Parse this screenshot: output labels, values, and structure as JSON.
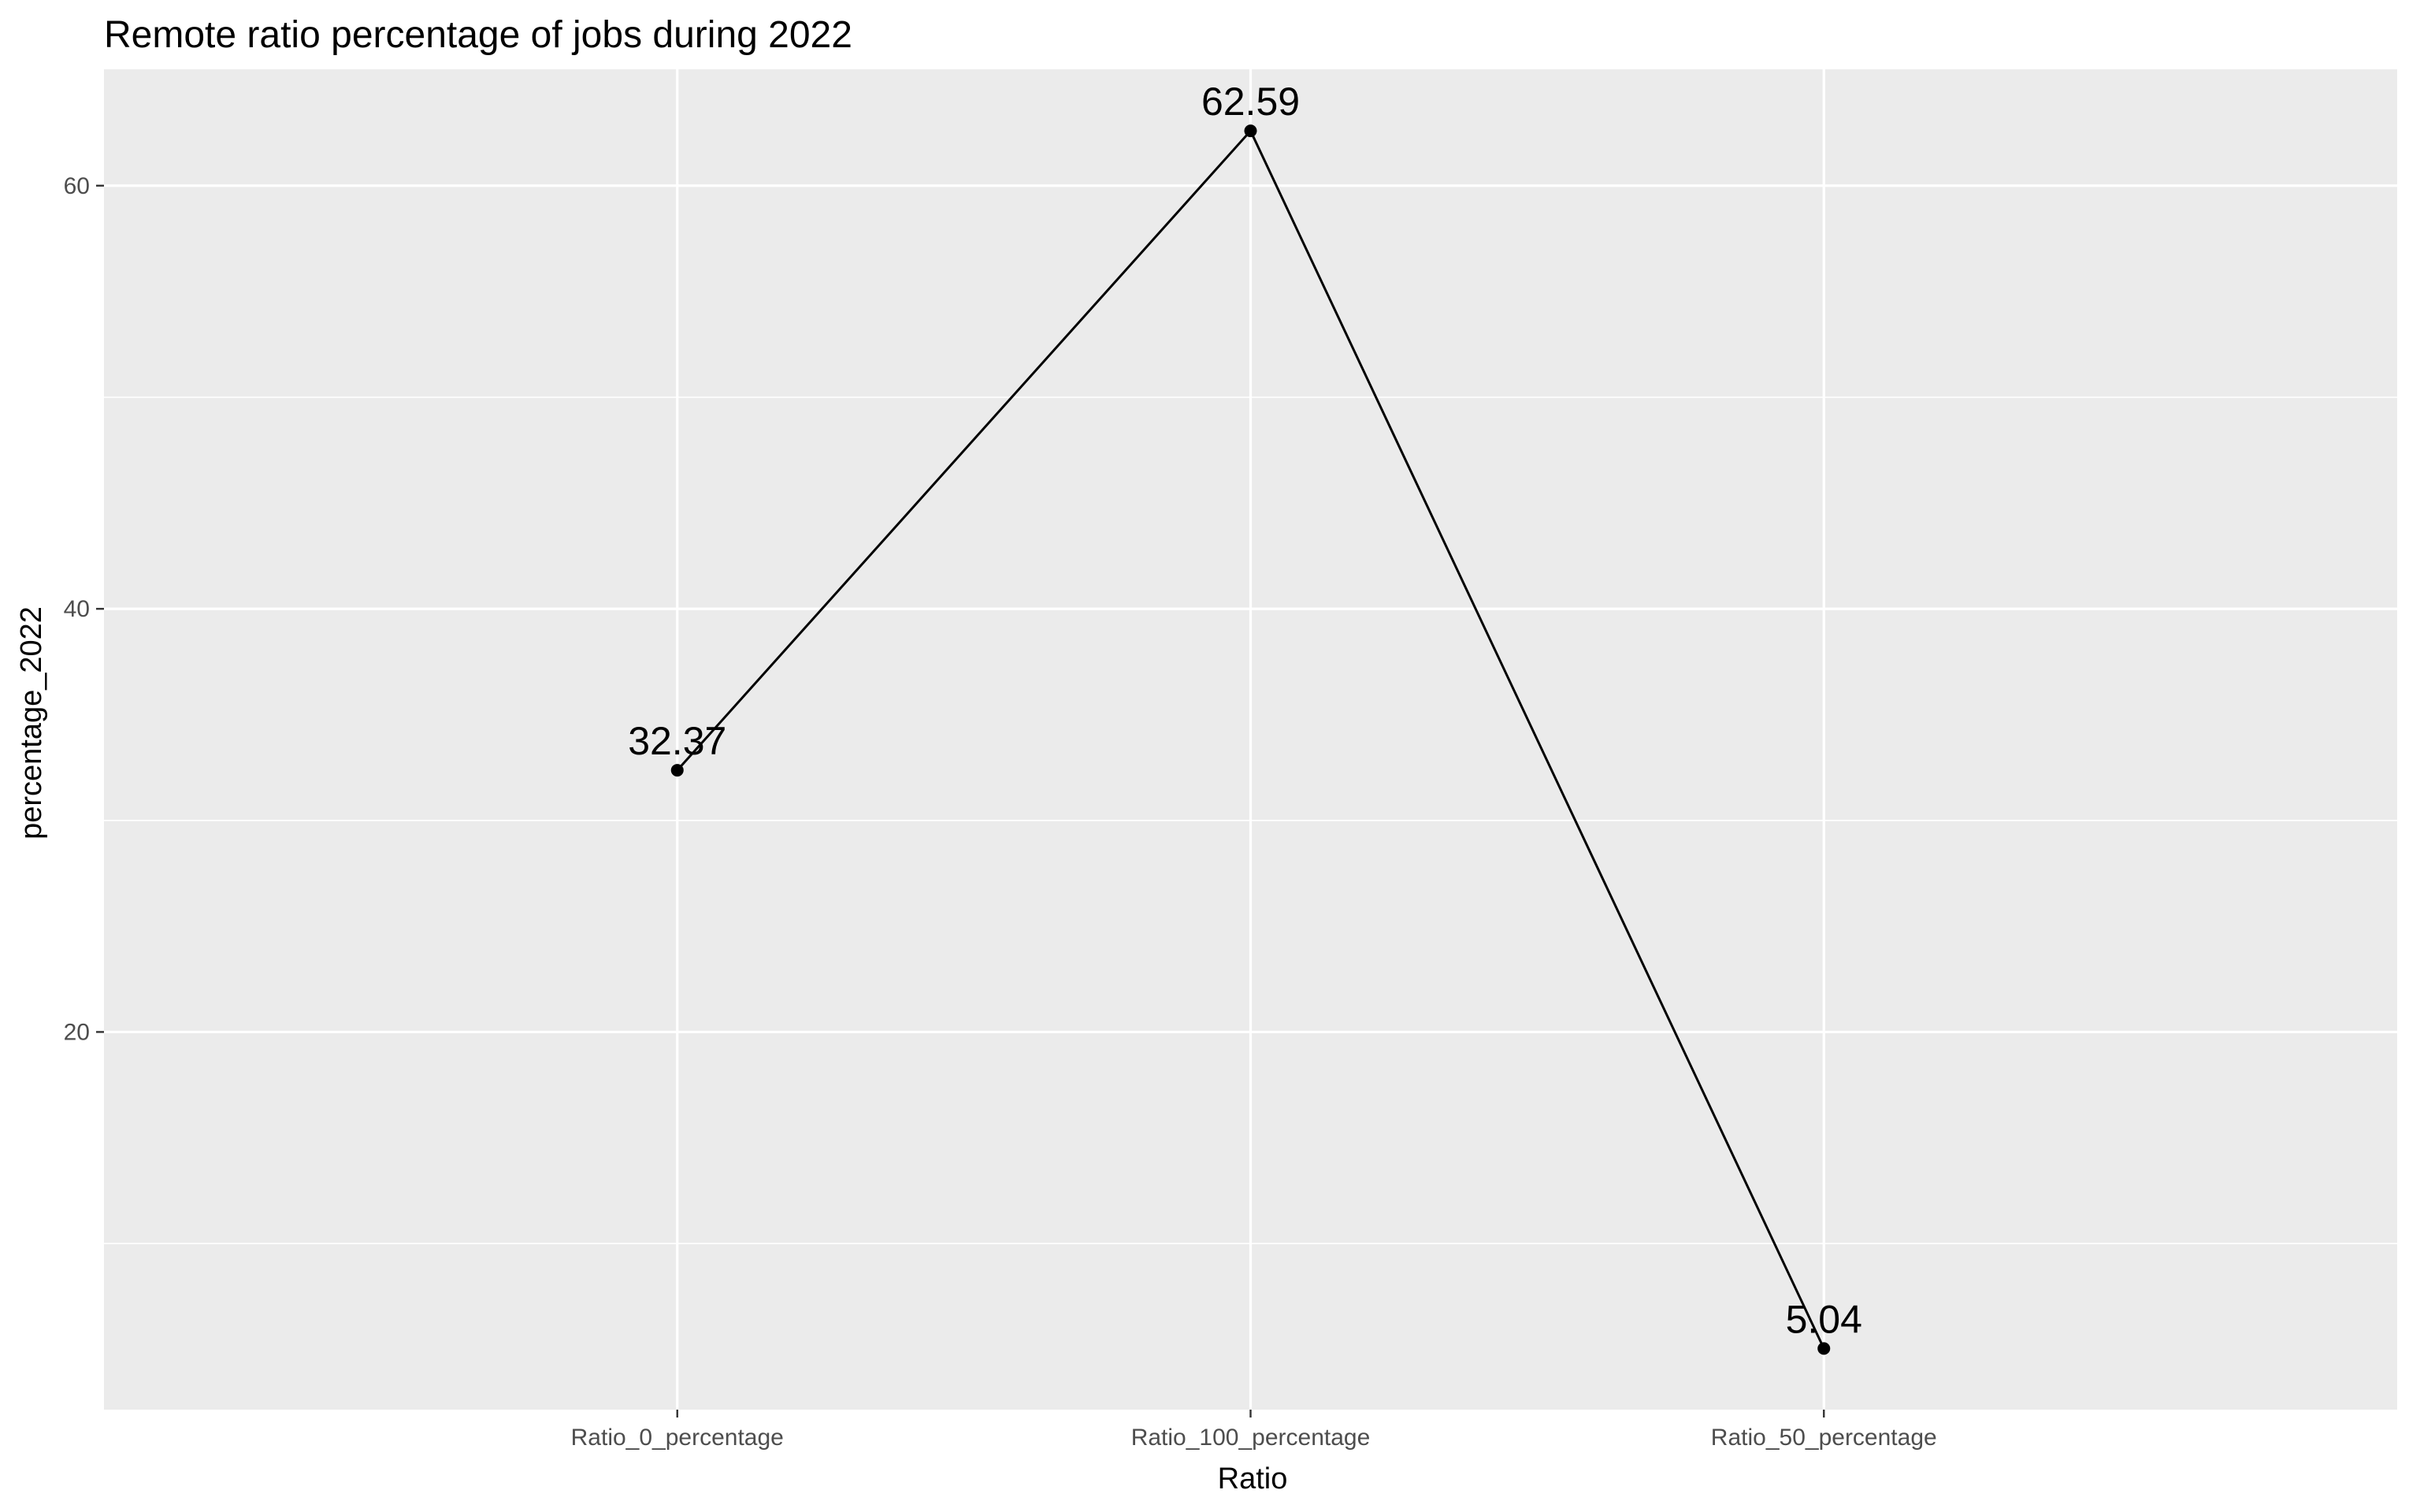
{
  "chart_data": {
    "type": "line",
    "title": "Remote ratio percentage of jobs during 2022",
    "xlabel": "Ratio",
    "ylabel": "percentage_2022",
    "categories": [
      "Ratio_0_percentage",
      "Ratio_100_percentage",
      "Ratio_50_percentage"
    ],
    "values": [
      32.37,
      62.59,
      5.04
    ],
    "data_labels": [
      "32.37",
      "62.59",
      "5.04"
    ],
    "ylim": [
      2.15,
      65.5
    ],
    "yticks": [
      20,
      40,
      60
    ],
    "y_minor_gridlines": [
      10,
      30,
      50
    ],
    "grid": true,
    "legend": "none",
    "colors": {
      "panel_background": "#ebebeb",
      "gridline": "#ffffff",
      "line": "#000000",
      "point": "#000000",
      "tick_text": "#4d4d4d",
      "tick_mark": "#333333"
    }
  }
}
